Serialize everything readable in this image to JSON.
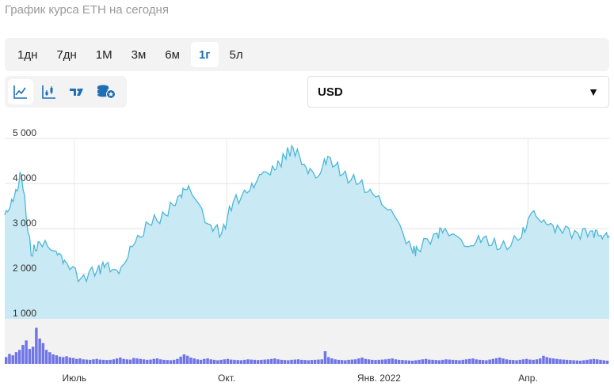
{
  "page": {
    "title": "График курса ETH на сегодня"
  },
  "periods": [
    {
      "label": "1дн",
      "active": false
    },
    {
      "label": "7дн",
      "active": false
    },
    {
      "label": "1М",
      "active": false
    },
    {
      "label": "3м",
      "active": false
    },
    {
      "label": "6м",
      "active": false
    },
    {
      "label": "1г",
      "active": true
    },
    {
      "label": "5л",
      "active": false
    }
  ],
  "tools": [
    {
      "icon": "line-chart-icon",
      "active": true
    },
    {
      "icon": "candlestick-chart-icon",
      "active": false
    },
    {
      "icon": "tradingview-icon",
      "active": false
    },
    {
      "icon": "coin-stack-icon",
      "active": false
    }
  ],
  "currency": {
    "value": "USD",
    "arrow": "▼"
  },
  "colors": {
    "accent": "#1f6fb5",
    "line": "#4bb8d8",
    "area": "#c9e9f4",
    "volume": "#6f74e6",
    "volume_bg": "#f2f2f2"
  },
  "chart_data": {
    "type": "area",
    "y_ticks": [
      "5 000",
      "4 000",
      "3 000",
      "2 000",
      "1 000"
    ],
    "x_ticks": [
      "Июль",
      "Окт.",
      "Янв. 2022",
      "Апр."
    ],
    "ylim": [
      1000,
      5000
    ],
    "grid": true,
    "series": [
      {
        "x": [
          "2021-05-20",
          "2021-05-25",
          "2021-05-30",
          "2021-06-05",
          "2021-06-10",
          "2021-06-20",
          "2021-06-25",
          "2021-07-05",
          "2021-07-15",
          "2021-07-20",
          "2021-07-28",
          "2021-08-05",
          "2021-08-15",
          "2021-08-25",
          "2021-09-03",
          "2021-09-08",
          "2021-09-20",
          "2021-09-28",
          "2021-10-05",
          "2021-10-15",
          "2021-10-22",
          "2021-10-30",
          "2021-11-05",
          "2021-11-10",
          "2021-11-18",
          "2021-11-25",
          "2021-12-01",
          "2021-12-10",
          "2021-12-20",
          "2021-12-30",
          "2022-01-10",
          "2022-01-21",
          "2022-01-24",
          "2022-02-05",
          "2022-02-10",
          "2022-02-24",
          "2022-03-05",
          "2022-03-15",
          "2022-03-28",
          "2022-04-03",
          "2022-04-12",
          "2022-04-20",
          "2022-05-01",
          "2022-05-10",
          "2022-05-15",
          "2022-05-20"
        ],
        "values": [
          3300,
          3600,
          4200,
          2400,
          2700,
          2500,
          2300,
          1900,
          2100,
          2200,
          2000,
          2600,
          3100,
          3300,
          3750,
          3950,
          3100,
          2900,
          3600,
          3850,
          4200,
          4300,
          4600,
          4800,
          4350,
          4150,
          4600,
          4200,
          4000,
          3700,
          3300,
          2500,
          2550,
          2900,
          3000,
          2600,
          2800,
          2550,
          2800,
          3350,
          3100,
          3000,
          2900,
          2950,
          2850,
          2850
        ]
      }
    ],
    "volume_ylim": [
      0,
      1000
    ],
    "volume": [
      150,
      220,
      190,
      260,
      310,
      420,
      520,
      330,
      380,
      800,
      560,
      460,
      310,
      260,
      210,
      190,
      160,
      150,
      170,
      140,
      130,
      110,
      120,
      100,
      95,
      90,
      100,
      110,
      95,
      90,
      85,
      90,
      100,
      120,
      140,
      110,
      100,
      95,
      130,
      120,
      110,
      100,
      90,
      95,
      110,
      120,
      100,
      90,
      85,
      80,
      90,
      110,
      160,
      210,
      180,
      140,
      120,
      100,
      90,
      110,
      120,
      100,
      90,
      80,
      90,
      100,
      110,
      95,
      90,
      85,
      80,
      90,
      100,
      95,
      90,
      85,
      90,
      95,
      100,
      110,
      120,
      100,
      90,
      85,
      80,
      90,
      95,
      100,
      90,
      85,
      80,
      85,
      90,
      95,
      100,
      280,
      150,
      120,
      100,
      90,
      85,
      80,
      90,
      95,
      100,
      120,
      140,
      110,
      100,
      90,
      85,
      90,
      95,
      100,
      110,
      120,
      100,
      90,
      85,
      80,
      75,
      70,
      80,
      90,
      100,
      110,
      95,
      90,
      85,
      80,
      90,
      100,
      95,
      90,
      85,
      80,
      90,
      100,
      110,
      120,
      100,
      90,
      85,
      80,
      95,
      110,
      125,
      140,
      120,
      100,
      90,
      85,
      80,
      90,
      100,
      110,
      95,
      90,
      100,
      120,
      180,
      150,
      130,
      120,
      110,
      100,
      95,
      90,
      85,
      80,
      75,
      70,
      80,
      90,
      100,
      110,
      100,
      90,
      80,
      70
    ]
  }
}
